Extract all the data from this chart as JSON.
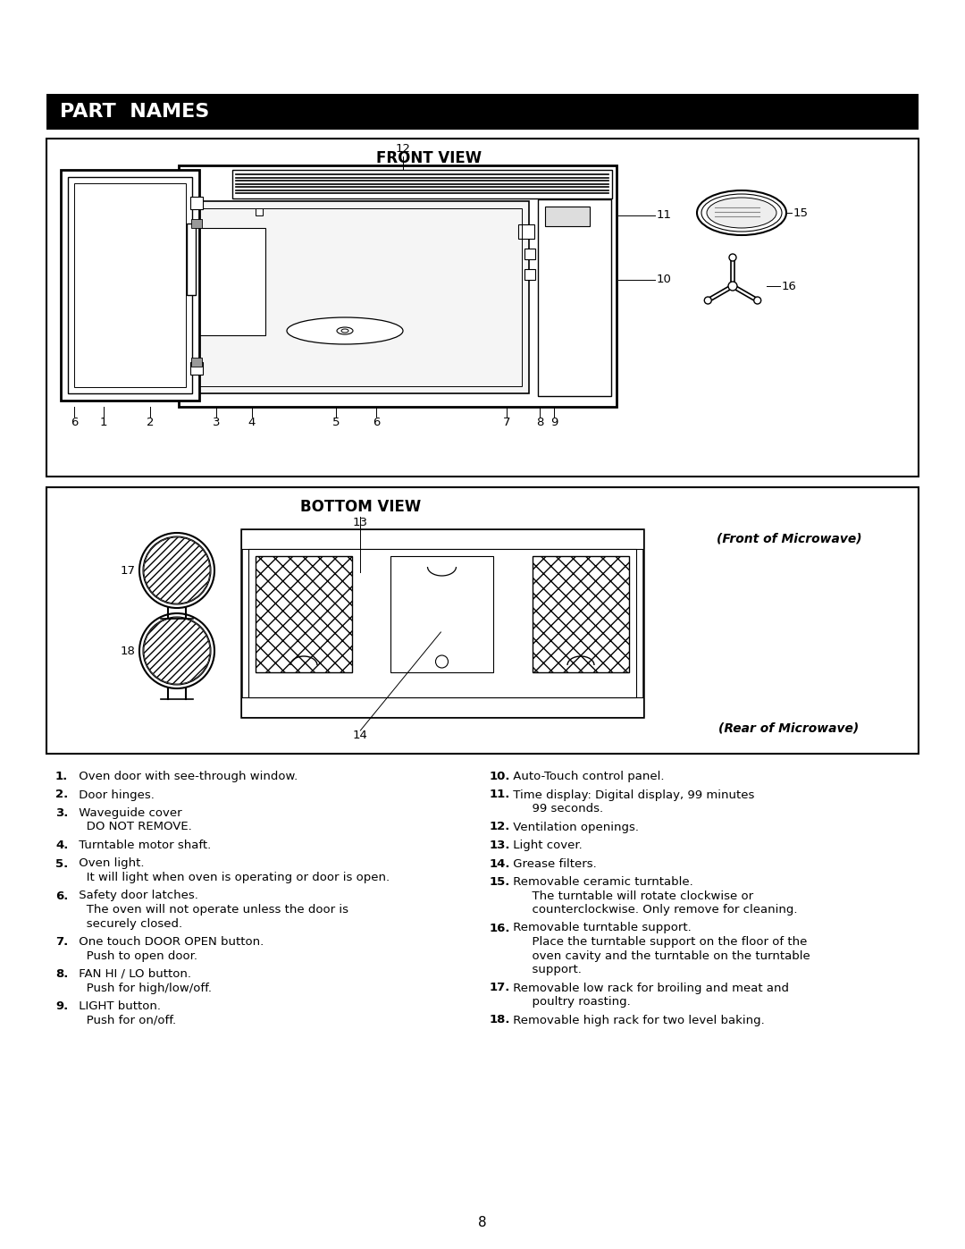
{
  "title": "PART  NAMES",
  "bg_color": "#ffffff",
  "front_view_title": "FRONT VIEW",
  "bottom_view_title": "BOTTOM VIEW",
  "page_number": "8",
  "items_left": [
    [
      "1.",
      " Oven door with see-through window."
    ],
    [
      "2.",
      " Door hinges."
    ],
    [
      "3.",
      " Waveguide cover",
      "   DO NOT REMOVE."
    ],
    [
      "4.",
      " Turntable motor shaft."
    ],
    [
      "5.",
      " Oven light.",
      "   It will light when oven is operating or door is open."
    ],
    [
      "6.",
      " Safety door latches.",
      "   The oven will not operate unless the door is",
      "   securely closed."
    ],
    [
      "7.",
      " One touch DOOR OPEN button.",
      "   Push to open door."
    ],
    [
      "8.",
      " FAN HI / LO button.",
      "   Push for high/low/off."
    ],
    [
      "9.",
      " LIGHT button.",
      "   Push for on/off."
    ]
  ],
  "items_right": [
    [
      "10.",
      " Auto-Touch control panel."
    ],
    [
      "11.",
      " Time display: Digital display, 99 minutes",
      "      99 seconds."
    ],
    [
      "12.",
      " Ventilation openings."
    ],
    [
      "13.",
      " Light cover."
    ],
    [
      "14.",
      " Grease filters."
    ],
    [
      "15.",
      " Removable ceramic turntable.",
      "      The turntable will rotate clockwise or",
      "      counterclockwise. Only remove for cleaning."
    ],
    [
      "16.",
      " Removable turntable support.",
      "      Place the turntable support on the floor of the",
      "      oven cavity and the turntable on the turntable",
      "      support."
    ],
    [
      "17.",
      " Removable low rack for broiling and meat and",
      "      poultry roasting."
    ],
    [
      "18.",
      " Removable high rack for two level baking."
    ]
  ]
}
